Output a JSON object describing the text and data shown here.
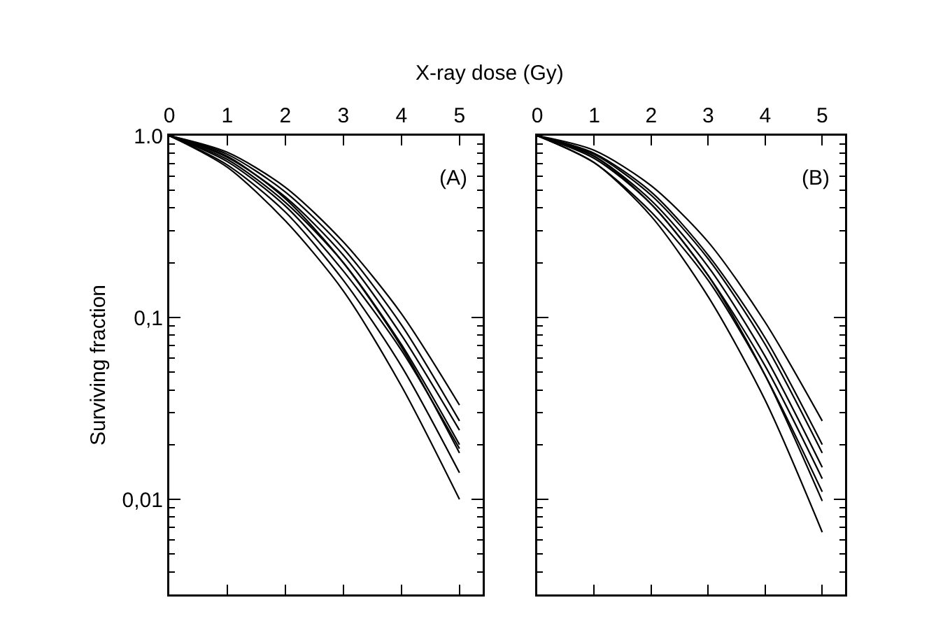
{
  "chart_data": [
    {
      "type": "line",
      "xlabel": "X-ray dose (Gy)",
      "ylabel": "Surviving fraction",
      "annotations": [
        "(A)"
      ],
      "log": true,
      "marker": "none",
      "line_style": "solid",
      "xlim": [
        0,
        5.4
      ],
      "xticks": [
        0,
        1,
        2,
        3,
        4,
        5
      ],
      "ylim": [
        0.003,
        1
      ],
      "yticks": [
        {
          "value": 1,
          "label": "1.0"
        },
        {
          "value": 0.1,
          "label": "0,1"
        },
        {
          "value": 0.01,
          "label": "0,01"
        }
      ],
      "x": [
        0,
        1,
        2,
        3,
        4,
        5
      ],
      "series": [
        {
          "color": "#000000",
          "values": [
            1,
            0.81,
            0.52,
            0.26,
            0.105,
            0.033
          ]
        },
        {
          "color": "#000000",
          "values": [
            1,
            0.79,
            0.49,
            0.24,
            0.091,
            0.027
          ]
        },
        {
          "color": "#000000",
          "values": [
            1,
            0.76,
            0.46,
            0.22,
            0.08,
            0.024
          ]
        },
        {
          "color": "#000000",
          "values": [
            1,
            0.74,
            0.43,
            0.2,
            0.071,
            0.02
          ]
        },
        {
          "color": "#000000",
          "values": [
            1,
            0.72,
            0.41,
            0.18,
            0.066,
            0.019
          ]
        },
        {
          "color": "#000000",
          "values": [
            1,
            0.69,
            0.38,
            0.16,
            0.054,
            0.014
          ]
        },
        {
          "color": "#000000",
          "values": [
            1,
            0.67,
            0.34,
            0.14,
            0.042,
            0.01
          ]
        },
        {
          "color": "#000000",
          "values": [
            1,
            0.77,
            0.45,
            0.2,
            0.069,
            0.018
          ]
        }
      ]
    },
    {
      "type": "line",
      "annotations": [
        "(B)"
      ],
      "log": true,
      "marker": "none",
      "line_style": "solid",
      "tick_labels": "x",
      "xlim": [
        0,
        5.4
      ],
      "xticks": [
        0,
        1,
        2,
        3,
        4,
        5
      ],
      "ylim": [
        0.003,
        1
      ],
      "x": [
        0,
        1,
        2,
        3,
        4,
        5
      ],
      "series": [
        {
          "color": "#000000",
          "values": [
            1,
            0.83,
            0.53,
            0.26,
            0.094,
            0.027
          ]
        },
        {
          "color": "#000000",
          "values": [
            1,
            0.8,
            0.49,
            0.22,
            0.077,
            0.02
          ]
        },
        {
          "color": "#000000",
          "values": [
            1,
            0.79,
            0.47,
            0.21,
            0.071,
            0.018
          ]
        },
        {
          "color": "#000000",
          "values": [
            1,
            0.77,
            0.44,
            0.19,
            0.061,
            0.015
          ]
        },
        {
          "color": "#000000",
          "values": [
            1,
            0.75,
            0.42,
            0.17,
            0.054,
            0.013
          ]
        },
        {
          "color": "#000000",
          "values": [
            1,
            0.71,
            0.38,
            0.16,
            0.048,
            0.011
          ]
        },
        {
          "color": "#000000",
          "values": [
            1,
            0.77,
            0.42,
            0.17,
            0.048,
            0.0098
          ]
        },
        {
          "color": "#000000",
          "values": [
            1,
            0.71,
            0.36,
            0.13,
            0.035,
            0.0066
          ]
        }
      ]
    }
  ]
}
